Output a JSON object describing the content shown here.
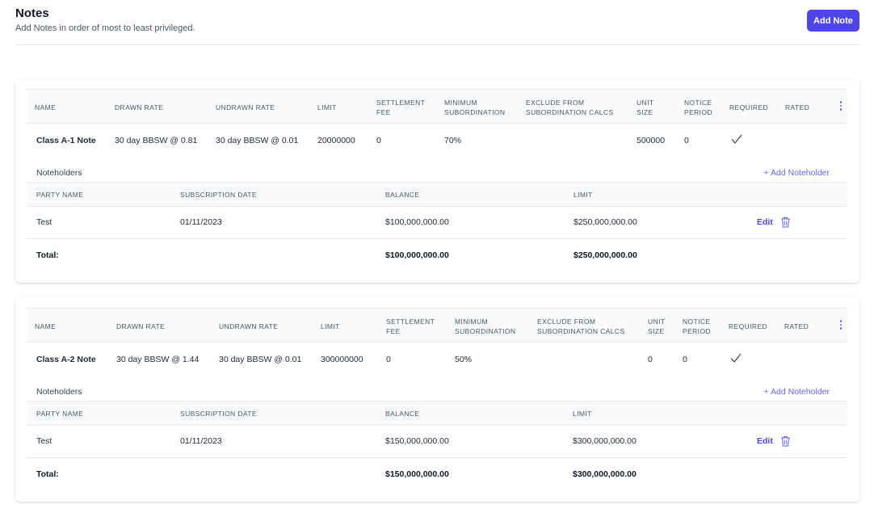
{
  "header": {
    "title": "Notes",
    "subtitle": "Add Notes in order of most to least privileged.",
    "add_note_label": "Add Note"
  },
  "note_columns": {
    "name": "NAME",
    "drawn_rate": "DRAWN RATE",
    "undrawn_rate": "UNDRAWN RATE",
    "limit": "LIMIT",
    "settlement_fee_1": "SETTLEMENT",
    "settlement_fee_2": "FEE",
    "min_sub_1": "MINIMUM",
    "min_sub_2": "SUBORDINATION",
    "exclude_1": "EXCLUDE FROM",
    "exclude_2": "SUBORDINATION CALCS",
    "unit_size_1": "UNIT",
    "unit_size_2": "SIZE",
    "notice_1": "NOTICE",
    "notice_2": "PERIOD",
    "required": "REQUIRED",
    "rated": "RATED"
  },
  "noteholder_columns": {
    "party_name": "PARTY NAME",
    "subscription_date": "SUBSCRIPTION DATE",
    "balance": "BALANCE",
    "limit": "LIMIT"
  },
  "noteholders_title": "Noteholders",
  "add_noteholder_label": "+ Add Noteholder",
  "edit_label": "Edit",
  "total_label": "Total:",
  "notes": [
    {
      "name": "Class A-1 Note",
      "drawn_rate": "30 day BBSW @ 0.81",
      "undrawn_rate": "30 day BBSW @ 0.01",
      "limit": "20000000",
      "settlement_fee": "0",
      "minimum_subordination": "70%",
      "exclude_from_subordination_calcs": "",
      "unit_size": "500000",
      "notice_period": "0",
      "required": true,
      "rated": "",
      "noteholders": [
        {
          "party_name": "Test",
          "subscription_date": "01/11/2023",
          "balance": "$100,000,000.00",
          "limit": "$250,000,000.00"
        }
      ],
      "total_balance": "$100,000,000.00",
      "total_limit": "$250,000,000.00"
    },
    {
      "name": "Class A-2 Note",
      "drawn_rate": "30 day BBSW @ 1.44",
      "undrawn_rate": "30 day BBSW @ 0.01",
      "limit": "300000000",
      "settlement_fee": "0",
      "minimum_subordination": "50%",
      "exclude_from_subordination_calcs": "",
      "unit_size": "0",
      "notice_period": "0",
      "required": true,
      "rated": "",
      "noteholders": [
        {
          "party_name": "Test",
          "subscription_date": "01/11/2023",
          "balance": "$150,000,000.00",
          "limit": "$300,000,000.00"
        }
      ],
      "total_balance": "$150,000,000.00",
      "total_limit": "$300,000,000.00"
    }
  ],
  "colors": {
    "accent": "#4f46e5",
    "link": "#6366f1",
    "header_bg": "#f9fafb",
    "border": "#e5e7eb"
  }
}
